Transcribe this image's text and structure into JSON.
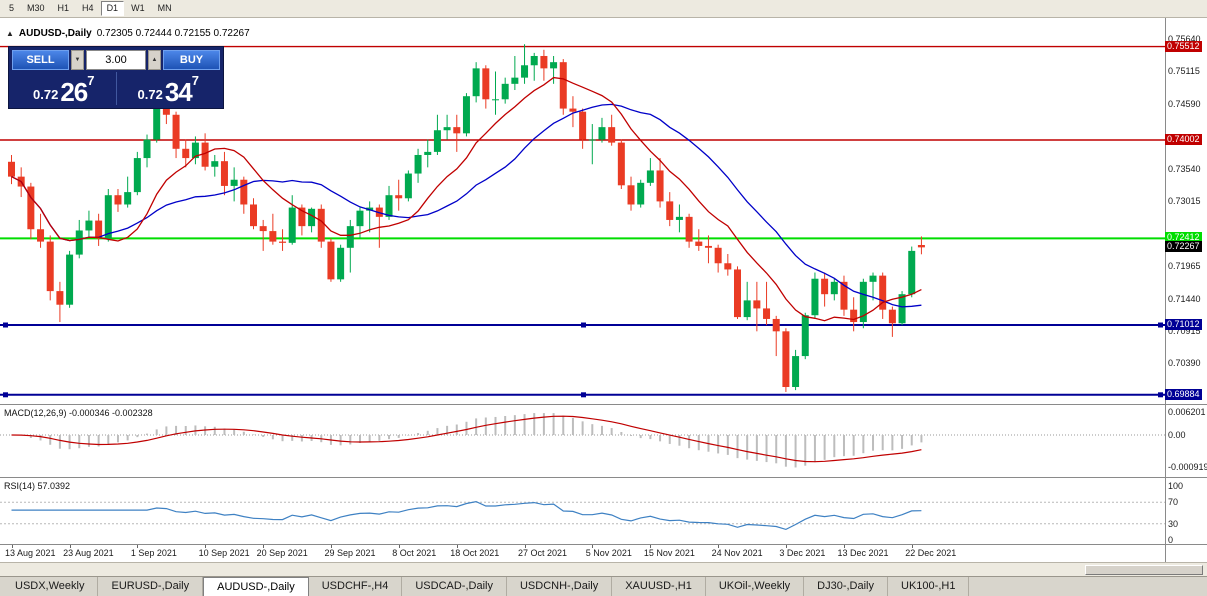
{
  "colors": {
    "bull": "#00A94F",
    "bear": "#EA3B24",
    "ma_fast": "#C00000",
    "ma_slow": "#0000C8",
    "macd_hist": "#BDBDBD",
    "macd_signal": "#C00000",
    "rsi": "#3E81C3"
  },
  "toolbar": {
    "timeframes": [
      "5",
      "M30",
      "H1",
      "H4",
      "D1",
      "W1",
      "MN"
    ],
    "selected": "D1"
  },
  "chart_header": {
    "toggle_icon": "▲",
    "title": "AUDUSD-,Daily",
    "ohlc": "0.72305 0.72444 0.72155 0.72267"
  },
  "trade_panel": {
    "sell_label": "SELL",
    "buy_label": "BUY",
    "volume": "3.00",
    "icons": {
      "spin_up": "▲",
      "spin_down": "▼"
    },
    "sell_price": {
      "prefix": "0.72",
      "big": "26",
      "sup": "7"
    },
    "buy_price": {
      "prefix": "0.72",
      "big": "34",
      "sup": "7"
    }
  },
  "indicators": {
    "macd": {
      "label": "MACD(12,26,9) -0.000346 -0.002328",
      "axis": [
        "0.006201",
        "0.00",
        "-0.000919"
      ]
    },
    "rsi": {
      "label": "RSI(14) 57.0392",
      "axis": [
        "100",
        "70",
        "30",
        "0"
      ],
      "levels": [
        70,
        30
      ]
    }
  },
  "tabs": {
    "items": [
      "USDX,Weekly",
      "EURUSD-,Daily",
      "AUDUSD-,Daily",
      "USDCHF-,H4",
      "USDCAD-,Daily",
      "USDCNH-,Daily",
      "XAUUSD-,H1",
      "UKOil-,Weekly",
      "DJ30-,Daily",
      "UK100-,H1"
    ],
    "active_index": 2
  },
  "chart_data": {
    "type": "candlestick",
    "symbol": "AUDUSD",
    "timeframe": "Daily",
    "title": "AUDUSD-,Daily",
    "ohlc_display": {
      "open": "0.72305",
      "high": "0.72444",
      "low": "0.72155",
      "close": "0.72267"
    },
    "price_range": {
      "min": 0.698,
      "max": 0.7578
    },
    "current_price": {
      "label": "0.72267",
      "price": 0.72267
    },
    "y_axis_ticks": [
      "0.75640",
      "0.75115",
      "0.74590",
      "0.73540",
      "0.73015",
      "0.71965",
      "0.71440",
      "0.70915",
      "0.70390"
    ],
    "h_lines": [
      {
        "price": 0.75512,
        "color": "#C00000",
        "width": 1.4,
        "label": "0.75512"
      },
      {
        "price": 0.74002,
        "color": "#C00000",
        "width": 1.4,
        "label": "0.74002"
      },
      {
        "price": 0.72412,
        "color": "#00DD00",
        "width": 2,
        "label": "0.72412"
      },
      {
        "price": 0.71012,
        "color": "#000096",
        "width": 2,
        "label": "0.71012",
        "markers": [
          5,
          583,
          1160
        ]
      },
      {
        "price": 0.69884,
        "color": "#000096",
        "width": 2,
        "label": "0.69884",
        "markers": [
          5,
          583,
          1160
        ]
      }
    ],
    "moving_averages": [
      {
        "name": "fast",
        "period": 10,
        "color_key": "ma_fast"
      },
      {
        "name": "slow",
        "period": 20,
        "color_key": "ma_slow"
      }
    ],
    "x_axis_labels": [
      {
        "i": 0,
        "text": "13 Aug 2021"
      },
      {
        "i": 6,
        "text": "23 Aug 2021"
      },
      {
        "i": 13,
        "text": "1 Sep 2021"
      },
      {
        "i": 20,
        "text": "10 Sep 2021"
      },
      {
        "i": 26,
        "text": "20 Sep 2021"
      },
      {
        "i": 33,
        "text": "29 Sep 2021"
      },
      {
        "i": 40,
        "text": "8 Oct 2021"
      },
      {
        "i": 46,
        "text": "18 Oct 2021"
      },
      {
        "i": 53,
        "text": "27 Oct 2021"
      },
      {
        "i": 60,
        "text": "5 Nov 2021"
      },
      {
        "i": 66,
        "text": "15 Nov 2021"
      },
      {
        "i": 73,
        "text": "24 Nov 2021"
      },
      {
        "i": 80,
        "text": "3 Dec 2021"
      },
      {
        "i": 86,
        "text": "13 Dec 2021"
      },
      {
        "i": 93,
        "text": "22 Dec 2021"
      }
    ],
    "candles": [
      [
        0.7365,
        0.7376,
        0.7329,
        0.7341
      ],
      [
        0.7341,
        0.7356,
        0.7308,
        0.7325
      ],
      [
        0.7325,
        0.7331,
        0.724,
        0.7256
      ],
      [
        0.7256,
        0.7281,
        0.7226,
        0.7236
      ],
      [
        0.7236,
        0.7246,
        0.7141,
        0.7156
      ],
      [
        0.7156,
        0.7171,
        0.7106,
        0.7134
      ],
      [
        0.7134,
        0.7221,
        0.7129,
        0.7215
      ],
      [
        0.7215,
        0.7271,
        0.7209,
        0.7254
      ],
      [
        0.7254,
        0.7286,
        0.7244,
        0.727
      ],
      [
        0.727,
        0.7281,
        0.7229,
        0.7241
      ],
      [
        0.7241,
        0.7321,
        0.7236,
        0.7311
      ],
      [
        0.7311,
        0.7321,
        0.7284,
        0.7296
      ],
      [
        0.7296,
        0.7341,
        0.7291,
        0.7316
      ],
      [
        0.7316,
        0.7381,
        0.7311,
        0.7371
      ],
      [
        0.7371,
        0.7409,
        0.7356,
        0.7401
      ],
      [
        0.7401,
        0.7477,
        0.7396,
        0.7451
      ],
      [
        0.7451,
        0.7462,
        0.7426,
        0.7441
      ],
      [
        0.7441,
        0.7446,
        0.7371,
        0.7386
      ],
      [
        0.7386,
        0.7401,
        0.7356,
        0.7371
      ],
      [
        0.7371,
        0.7406,
        0.7361,
        0.7396
      ],
      [
        0.7396,
        0.7411,
        0.7351,
        0.7357
      ],
      [
        0.7357,
        0.7376,
        0.7341,
        0.7366
      ],
      [
        0.7366,
        0.7381,
        0.7311,
        0.7326
      ],
      [
        0.7326,
        0.7356,
        0.7301,
        0.7336
      ],
      [
        0.7336,
        0.7341,
        0.7281,
        0.7296
      ],
      [
        0.7296,
        0.7306,
        0.7256,
        0.7261
      ],
      [
        0.7261,
        0.7271,
        0.7221,
        0.7253
      ],
      [
        0.7253,
        0.7281,
        0.7231,
        0.7236
      ],
      [
        0.7236,
        0.7256,
        0.7221,
        0.7234
      ],
      [
        0.7234,
        0.7311,
        0.7231,
        0.7291
      ],
      [
        0.7291,
        0.7296,
        0.7246,
        0.7261
      ],
      [
        0.7261,
        0.7291,
        0.7251,
        0.7289
      ],
      [
        0.7289,
        0.7296,
        0.7226,
        0.7236
      ],
      [
        0.7236,
        0.7241,
        0.7171,
        0.7175
      ],
      [
        0.7175,
        0.7231,
        0.7171,
        0.7226
      ],
      [
        0.7226,
        0.7271,
        0.7186,
        0.7261
      ],
      [
        0.7261,
        0.7291,
        0.7241,
        0.7286
      ],
      [
        0.7286,
        0.7301,
        0.7251,
        0.7291
      ],
      [
        0.7291,
        0.7296,
        0.7226,
        0.7276
      ],
      [
        0.7276,
        0.7326,
        0.7271,
        0.7311
      ],
      [
        0.7311,
        0.7336,
        0.7286,
        0.7306
      ],
      [
        0.7306,
        0.7351,
        0.7301,
        0.7346
      ],
      [
        0.7346,
        0.7386,
        0.7331,
        0.7376
      ],
      [
        0.7376,
        0.7401,
        0.7356,
        0.7381
      ],
      [
        0.7381,
        0.7441,
        0.7376,
        0.7416
      ],
      [
        0.7416,
        0.7441,
        0.7401,
        0.7421
      ],
      [
        0.7421,
        0.7441,
        0.7381,
        0.7411
      ],
      [
        0.7411,
        0.7476,
        0.7406,
        0.7471
      ],
      [
        0.7471,
        0.7526,
        0.7461,
        0.7516
      ],
      [
        0.7516,
        0.7521,
        0.7451,
        0.7466
      ],
      [
        0.7466,
        0.7511,
        0.7441,
        0.7466
      ],
      [
        0.7466,
        0.7501,
        0.7459,
        0.7491
      ],
      [
        0.7491,
        0.7536,
        0.7481,
        0.7501
      ],
      [
        0.7501,
        0.7555,
        0.7491,
        0.7521
      ],
      [
        0.7521,
        0.7541,
        0.7496,
        0.7536
      ],
      [
        0.7536,
        0.7546,
        0.7496,
        0.7516
      ],
      [
        0.7516,
        0.7536,
        0.7491,
        0.7526
      ],
      [
        0.7526,
        0.7531,
        0.7441,
        0.7451
      ],
      [
        0.7451,
        0.7471,
        0.7421,
        0.7446
      ],
      [
        0.7446,
        0.7451,
        0.7386,
        0.7401
      ],
      [
        0.7401,
        0.7426,
        0.7361,
        0.7401
      ],
      [
        0.7401,
        0.7436,
        0.7396,
        0.7421
      ],
      [
        0.7421,
        0.7441,
        0.7391,
        0.7396
      ],
      [
        0.7396,
        0.7401,
        0.7321,
        0.7327
      ],
      [
        0.7327,
        0.7341,
        0.7286,
        0.7296
      ],
      [
        0.7296,
        0.7336,
        0.7291,
        0.7331
      ],
      [
        0.7331,
        0.7371,
        0.7326,
        0.7351
      ],
      [
        0.7351,
        0.7371,
        0.7291,
        0.7301
      ],
      [
        0.7301,
        0.7316,
        0.7261,
        0.7271
      ],
      [
        0.7271,
        0.7296,
        0.7251,
        0.7276
      ],
      [
        0.7276,
        0.7281,
        0.7226,
        0.7236
      ],
      [
        0.7236,
        0.7256,
        0.7221,
        0.7229
      ],
      [
        0.7229,
        0.7246,
        0.7201,
        0.7226
      ],
      [
        0.7226,
        0.7231,
        0.7186,
        0.7201
      ],
      [
        0.7201,
        0.7216,
        0.7181,
        0.7191
      ],
      [
        0.7191,
        0.7196,
        0.7111,
        0.7114
      ],
      [
        0.7114,
        0.7171,
        0.7109,
        0.7141
      ],
      [
        0.7141,
        0.7171,
        0.7091,
        0.7128
      ],
      [
        0.7128,
        0.7171,
        0.7101,
        0.7111
      ],
      [
        0.7111,
        0.7116,
        0.7051,
        0.7091
      ],
      [
        0.7091,
        0.7096,
        0.6993,
        0.7001
      ],
      [
        0.7001,
        0.7061,
        0.6996,
        0.7051
      ],
      [
        0.7051,
        0.7121,
        0.7046,
        0.7117
      ],
      [
        0.7117,
        0.7186,
        0.7111,
        0.7176
      ],
      [
        0.7176,
        0.7186,
        0.7131,
        0.7151
      ],
      [
        0.7151,
        0.7176,
        0.7141,
        0.7171
      ],
      [
        0.7171,
        0.7181,
        0.7116,
        0.7126
      ],
      [
        0.7126,
        0.7146,
        0.7091,
        0.7106
      ],
      [
        0.7106,
        0.7176,
        0.7096,
        0.7171
      ],
      [
        0.7171,
        0.7186,
        0.7141,
        0.7181
      ],
      [
        0.7181,
        0.7186,
        0.7111,
        0.7126
      ],
      [
        0.7126,
        0.7131,
        0.7082,
        0.7104
      ],
      [
        0.7104,
        0.7156,
        0.7101,
        0.7151
      ],
      [
        0.7151,
        0.7228,
        0.7146,
        0.7221
      ],
      [
        0.72305,
        0.72444,
        0.72155,
        0.72267
      ]
    ]
  }
}
